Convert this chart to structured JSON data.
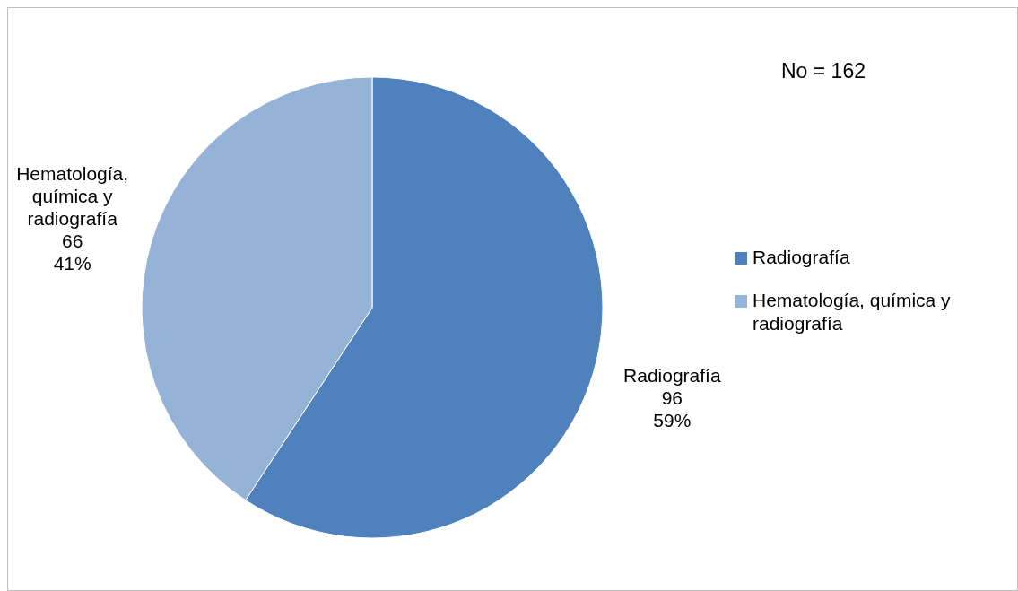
{
  "chart_data": {
    "type": "pie",
    "categories": [
      "Radiografía",
      "Hematología, química y radiografía"
    ],
    "values": [
      96,
      66
    ],
    "colors": [
      "#4f81bd",
      "#95b3d7"
    ],
    "value_labels": [
      "96\n59%",
      "66\n41%"
    ],
    "annotations": [
      "No = 162"
    ],
    "legend": "right"
  }
}
